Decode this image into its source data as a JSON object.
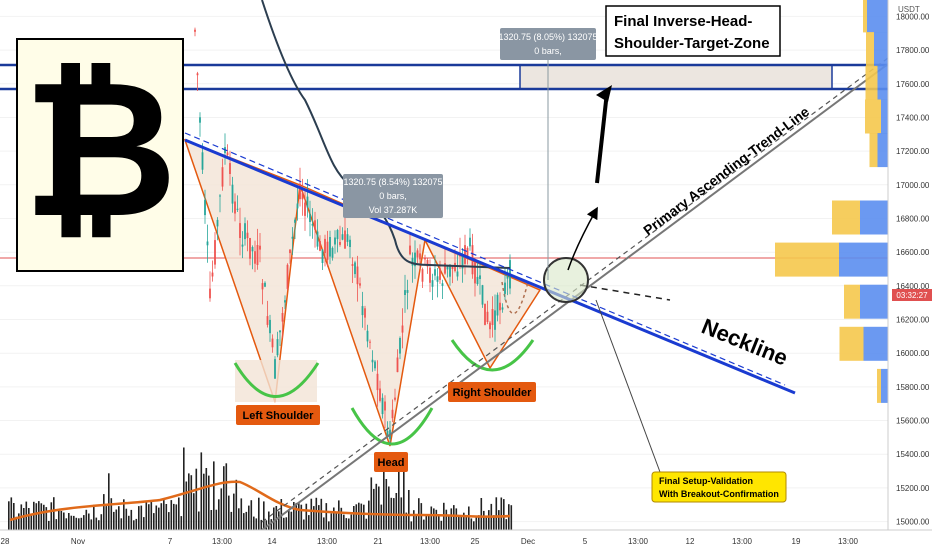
{
  "chart_data": {
    "type": "candlestick",
    "symbol_logo": "₿",
    "price_unit": "USDT",
    "y_range": [
      15000,
      18100
    ],
    "y_ticks": [
      "18000.00",
      "17800.00",
      "17600.00",
      "17400.00",
      "17200.00",
      "17000.00",
      "16800.00",
      "16600.00",
      "16400.00",
      "16200.00",
      "16000.00",
      "15800.00",
      "15600.00",
      "15400.00",
      "15200.00",
      "15000.00"
    ],
    "current_price_label": "03:32:27",
    "x_ticks": [
      "28",
      "Nov",
      "7",
      "13:00",
      "14",
      "13:00",
      "21",
      "13:00",
      "25",
      "Dec",
      "5",
      "13:00",
      "12",
      "13:00",
      "19",
      "13:00"
    ],
    "horizontal_level": 16600,
    "target_zone": [
      17600,
      17800
    ],
    "neckline": {
      "start": [
        0,
        17300
      ],
      "end": [
        1,
        15800
      ]
    },
    "trendline": {
      "start": [
        0,
        15000
      ],
      "end": [
        1,
        17800
      ]
    },
    "measure_boxes": [
      {
        "lines": [
          "1320.75 (8.54%) 132075",
          "0 bars,",
          "Vol 37.287K"
        ]
      },
      {
        "lines": [
          "1320.75 (8.05%) 132075",
          "0 bars,"
        ]
      }
    ],
    "annotations": {
      "title": [
        "Final Inverse-Head-",
        "Shoulder-Target-Zone"
      ],
      "neckline": "Neckline",
      "trendline": "Primary Ascending-Trend-Line",
      "left_shoulder": "Left Shoulder",
      "head": "Head",
      "right_shoulder": "Right Shoulder",
      "validation": [
        "Final Setup-Validation",
        "With Breakout-Confirmation"
      ]
    },
    "volume_profile_bars": [
      {
        "price": 18000,
        "blue": 0.3,
        "yellow": 0.05
      },
      {
        "price": 17800,
        "blue": 0.2,
        "yellow": 0.1
      },
      {
        "price": 17600,
        "blue": 0.15,
        "yellow": 0.15
      },
      {
        "price": 17400,
        "blue": 0.1,
        "yellow": 0.2
      },
      {
        "price": 17200,
        "blue": 0.15,
        "yellow": 0.1
      },
      {
        "price": 16800,
        "blue": 0.4,
        "yellow": 0.35
      },
      {
        "price": 16550,
        "blue": 0.7,
        "yellow": 0.8
      },
      {
        "price": 16300,
        "blue": 0.4,
        "yellow": 0.2
      },
      {
        "price": 16050,
        "blue": 0.35,
        "yellow": 0.3
      },
      {
        "price": 15800,
        "blue": 0.1,
        "yellow": 0.05
      }
    ]
  }
}
